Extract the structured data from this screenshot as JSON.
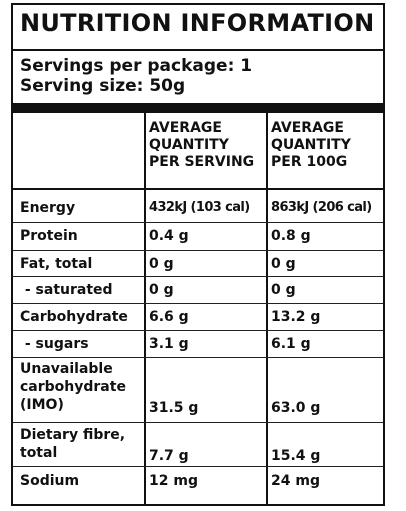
{
  "title": "NUTRITION INFORMATION",
  "servings_per_package": "Servings per package: 1",
  "serving_size": "Serving size: 50g",
  "columns": {
    "per_serving": [
      "AVERAGE",
      "QUANTITY",
      "PER SERVING"
    ],
    "per_100g": [
      "AVERAGE",
      "QUANTITY",
      "PER 100G"
    ]
  },
  "rows": [
    {
      "label": [
        "Energy"
      ],
      "serving": "432kJ (103 cal)",
      "per100": "863kJ (206 cal)"
    },
    {
      "label": [
        "Protein"
      ],
      "serving": "0.4 g",
      "per100": "0.8 g"
    },
    {
      "label": [
        "Fat, total"
      ],
      "serving": "0 g",
      "per100": "0 g"
    },
    {
      "label": [
        " - saturated"
      ],
      "serving": "0 g",
      "per100": "0 g"
    },
    {
      "label": [
        "Carbohydrate"
      ],
      "serving": "6.6 g",
      "per100": "13.2 g"
    },
    {
      "label": [
        " - sugars"
      ],
      "serving": "3.1 g",
      "per100": "6.1 g"
    },
    {
      "label": [
        "Unavailable",
        "carbohydrate",
        "(IMO)"
      ],
      "serving": "31.5 g",
      "per100": "63.0 g"
    },
    {
      "label": [
        "Dietary fibre,",
        "total"
      ],
      "serving": "7.7 g",
      "per100": "15.4 g"
    },
    {
      "label": [
        "Sodium"
      ],
      "serving": "12 mg",
      "per100": "24 mg"
    }
  ]
}
